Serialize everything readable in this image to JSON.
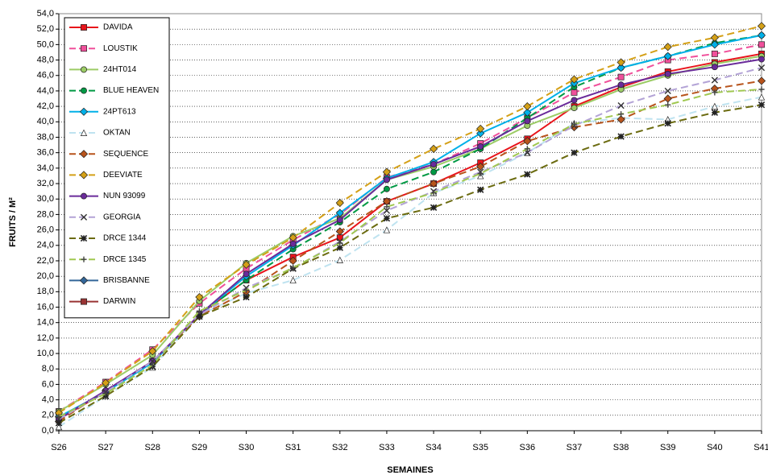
{
  "chart_data": {
    "type": "line",
    "x_label": "SEMAINES",
    "y_label": "FRUITS / M²",
    "categories": [
      "S26",
      "S27",
      "S28",
      "S29",
      "S30",
      "S31",
      "S32",
      "S33",
      "S34",
      "S35",
      "S36",
      "S37",
      "S38",
      "S39",
      "S40",
      "S41"
    ],
    "ylim": [
      0,
      54
    ],
    "yticks": [
      {
        "value": 0,
        "label": "0,0"
      },
      {
        "value": 2,
        "label": "2,0"
      },
      {
        "value": 4,
        "label": "4,0"
      },
      {
        "value": 6,
        "label": "6,0"
      },
      {
        "value": 8,
        "label": "8,0"
      },
      {
        "value": 10,
        "label": "10,0"
      },
      {
        "value": 12,
        "label": "12,0"
      },
      {
        "value": 14,
        "label": "14,0"
      },
      {
        "value": 16,
        "label": "16,0"
      },
      {
        "value": 18,
        "label": "18,0"
      },
      {
        "value": 20,
        "label": "20,0"
      },
      {
        "value": 22,
        "label": "22,0"
      },
      {
        "value": 24,
        "label": "24,0"
      },
      {
        "value": 26,
        "label": "26,0"
      },
      {
        "value": 28,
        "label": "28,0"
      },
      {
        "value": 30,
        "label": "30,0"
      },
      {
        "value": 32,
        "label": "32,0"
      },
      {
        "value": 34,
        "label": "34,0"
      },
      {
        "value": 36,
        "label": "36,0"
      },
      {
        "value": 38,
        "label": "38,0"
      },
      {
        "value": 40,
        "label": "40,0"
      },
      {
        "value": 42,
        "label": "42,0"
      },
      {
        "value": 44,
        "label": "44,0"
      },
      {
        "value": 46,
        "label": "46,0"
      },
      {
        "value": 48,
        "label": "48,0"
      },
      {
        "value": 50,
        "label": "50,0"
      },
      {
        "value": 52,
        "label": "52,0"
      },
      {
        "value": 54,
        "label": "54,0"
      }
    ],
    "grid": true,
    "legend": "upper left",
    "series": [
      {
        "name": "DAVIDA",
        "color": "#e8141b",
        "marker": "square",
        "dashed": false,
        "values": [
          1.5,
          5,
          9,
          15,
          19.5,
          22.5,
          25,
          29.7,
          32,
          34.7,
          37.8,
          42,
          44.5,
          46.5,
          47.7,
          48.8
        ]
      },
      {
        "name": "LOUSTIK",
        "color": "#f0509b",
        "marker": "square",
        "dashed": true,
        "values": [
          2.5,
          6.3,
          10.5,
          16.5,
          21,
          24.7,
          28,
          32.8,
          34.5,
          37.2,
          40.5,
          43.8,
          45.8,
          48,
          48.8,
          50
        ]
      },
      {
        "name": "24HT014",
        "color": "#9ccc66",
        "marker": "circle",
        "dashed": false,
        "values": [
          2.5,
          6,
          9.8,
          16.8,
          21.7,
          25.2,
          27.5,
          32.5,
          34.2,
          36.5,
          39.5,
          41.8,
          44.2,
          46,
          47.5,
          48.5
        ]
      },
      {
        "name": "BLUE HEAVEN",
        "color": "#009944",
        "marker": "circle",
        "dashed": true,
        "values": [
          1.5,
          5,
          9,
          15,
          19.5,
          23.5,
          27,
          31.3,
          33.5,
          36.5,
          40.5,
          44.5,
          47,
          48.5,
          50.2,
          51.2
        ]
      },
      {
        "name": "24PT613",
        "color": "#00b0e8",
        "marker": "diamond",
        "dashed": false,
        "values": [
          1.8,
          5,
          8.8,
          15,
          20,
          24,
          28.2,
          32.7,
          34.8,
          38.5,
          41.2,
          45,
          47,
          48.5,
          50,
          51.2
        ]
      },
      {
        "name": "OKTAN",
        "color": "#bfe3f0",
        "marker": "triangle",
        "dashed": true,
        "values": [
          0.5,
          4.5,
          8.2,
          15,
          17.8,
          19.5,
          22.1,
          26,
          30.8,
          33,
          36,
          39.8,
          40.5,
          40.3,
          42,
          43.2
        ]
      },
      {
        "name": "SEQUENCE",
        "color": "#b8541c",
        "marker": "diamond",
        "dashed": true,
        "values": [
          1.2,
          5.2,
          9,
          14.8,
          18,
          22,
          25.8,
          29.7,
          32,
          34.2,
          37.5,
          39.3,
          40.3,
          43,
          44.3,
          45.3
        ]
      },
      {
        "name": "DEEVIATE",
        "color": "#d4a017",
        "marker": "diamond",
        "dashed": true,
        "values": [
          2.3,
          6.2,
          10.3,
          17.3,
          21.5,
          25,
          29.5,
          33.5,
          36.5,
          39.1,
          42,
          45.5,
          47.7,
          49.7,
          50.9,
          52.4
        ]
      },
      {
        "name": "NUN 93099",
        "color": "#6a2b9a",
        "marker": "circle",
        "dashed": false,
        "values": [
          1.5,
          5.2,
          9,
          15,
          20.3,
          24.2,
          27.3,
          32.5,
          34.5,
          36.8,
          40.1,
          42.8,
          44.8,
          46.2,
          47.1,
          48.1
        ]
      },
      {
        "name": "GEORGIA",
        "color": "#b3a3d6",
        "marker": "x",
        "dashed": true,
        "values": [
          1.5,
          5,
          9,
          15,
          18.5,
          21,
          24.5,
          28.5,
          31,
          33.5,
          36,
          39.5,
          42.1,
          44,
          45.4,
          47
        ]
      },
      {
        "name": "DRCE 1344",
        "color": "#6b6b10",
        "marker": "star",
        "dashed": true,
        "values": [
          1,
          4.5,
          8.3,
          14.8,
          17.3,
          21,
          23.7,
          27.5,
          28.9,
          31.2,
          33.2,
          36,
          38.1,
          39.8,
          41.2,
          42.2
        ]
      },
      {
        "name": "DRCE 1345",
        "color": "#a0c850",
        "marker": "plus",
        "dashed": true,
        "values": [
          1.8,
          4.8,
          8.5,
          15.5,
          18.2,
          21.1,
          24.3,
          29,
          30.8,
          33.3,
          36.5,
          39.7,
          41,
          42.2,
          43.8,
          44.2
        ]
      },
      {
        "name": "BRISBANNE",
        "color": "#336699",
        "marker": "diamond",
        "dashed": false,
        "values": [
          null,
          null,
          null,
          null,
          null,
          null,
          null,
          null,
          null,
          null,
          null,
          null,
          null,
          null,
          null,
          null
        ]
      },
      {
        "name": "DARWIN",
        "color": "#993333",
        "marker": "square",
        "dashed": false,
        "values": [
          null,
          null,
          null,
          null,
          null,
          null,
          null,
          null,
          null,
          null,
          null,
          null,
          null,
          null,
          null,
          null
        ]
      }
    ]
  }
}
